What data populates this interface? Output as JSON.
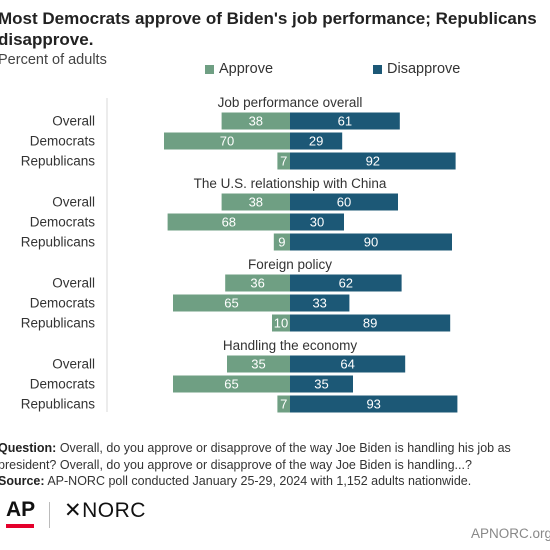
{
  "title": "Most Democrats approve of Biden's job performance; Republicans disapprove.",
  "subtitle": "Percent of adults",
  "colors": {
    "approve": "#6f9f83",
    "disapprove": "#1c5876"
  },
  "chart_data": {
    "type": "bar",
    "orientation": "diverging-horizontal",
    "legend_placement": "top",
    "legend": [
      "Approve",
      "Disapprove"
    ],
    "grid": false,
    "groups": [
      {
        "title": "Job performance overall",
        "rows": [
          {
            "label": "Overall",
            "approve": 38,
            "disapprove": 61
          },
          {
            "label": "Democrats",
            "approve": 70,
            "disapprove": 29
          },
          {
            "label": "Republicans",
            "approve": 7,
            "disapprove": 92
          }
        ]
      },
      {
        "title": "The U.S. relationship with China",
        "rows": [
          {
            "label": "Overall",
            "approve": 38,
            "disapprove": 60
          },
          {
            "label": "Democrats",
            "approve": 68,
            "disapprove": 30
          },
          {
            "label": "Republicans",
            "approve": 9,
            "disapprove": 90
          }
        ]
      },
      {
        "title": "Foreign policy",
        "rows": [
          {
            "label": "Overall",
            "approve": 36,
            "disapprove": 62
          },
          {
            "label": "Democrats",
            "approve": 65,
            "disapprove": 33
          },
          {
            "label": "Republicans",
            "approve": 10,
            "disapprove": 89
          }
        ]
      },
      {
        "title": "Handling the economy",
        "rows": [
          {
            "label": "Overall",
            "approve": 35,
            "disapprove": 64
          },
          {
            "label": "Democrats",
            "approve": 65,
            "disapprove": 35
          },
          {
            "label": "Republicans",
            "approve": 7,
            "disapprove": 93
          }
        ]
      }
    ]
  },
  "footnote": {
    "question_label": "Question:",
    "question_text": "Overall, do you approve or disapprove of the way Joe Biden is handling his job as president? Overall, do you approve or disapprove of the way Joe Biden is handling...?",
    "source_label": "Source:",
    "source_text": "AP-NORC poll conducted January 25-29, 2024 with 1,152 adults nationwide."
  },
  "logos": {
    "ap": "AP",
    "norc": "NORC",
    "norc_mark": "✕"
  },
  "site": "APNORC.org"
}
